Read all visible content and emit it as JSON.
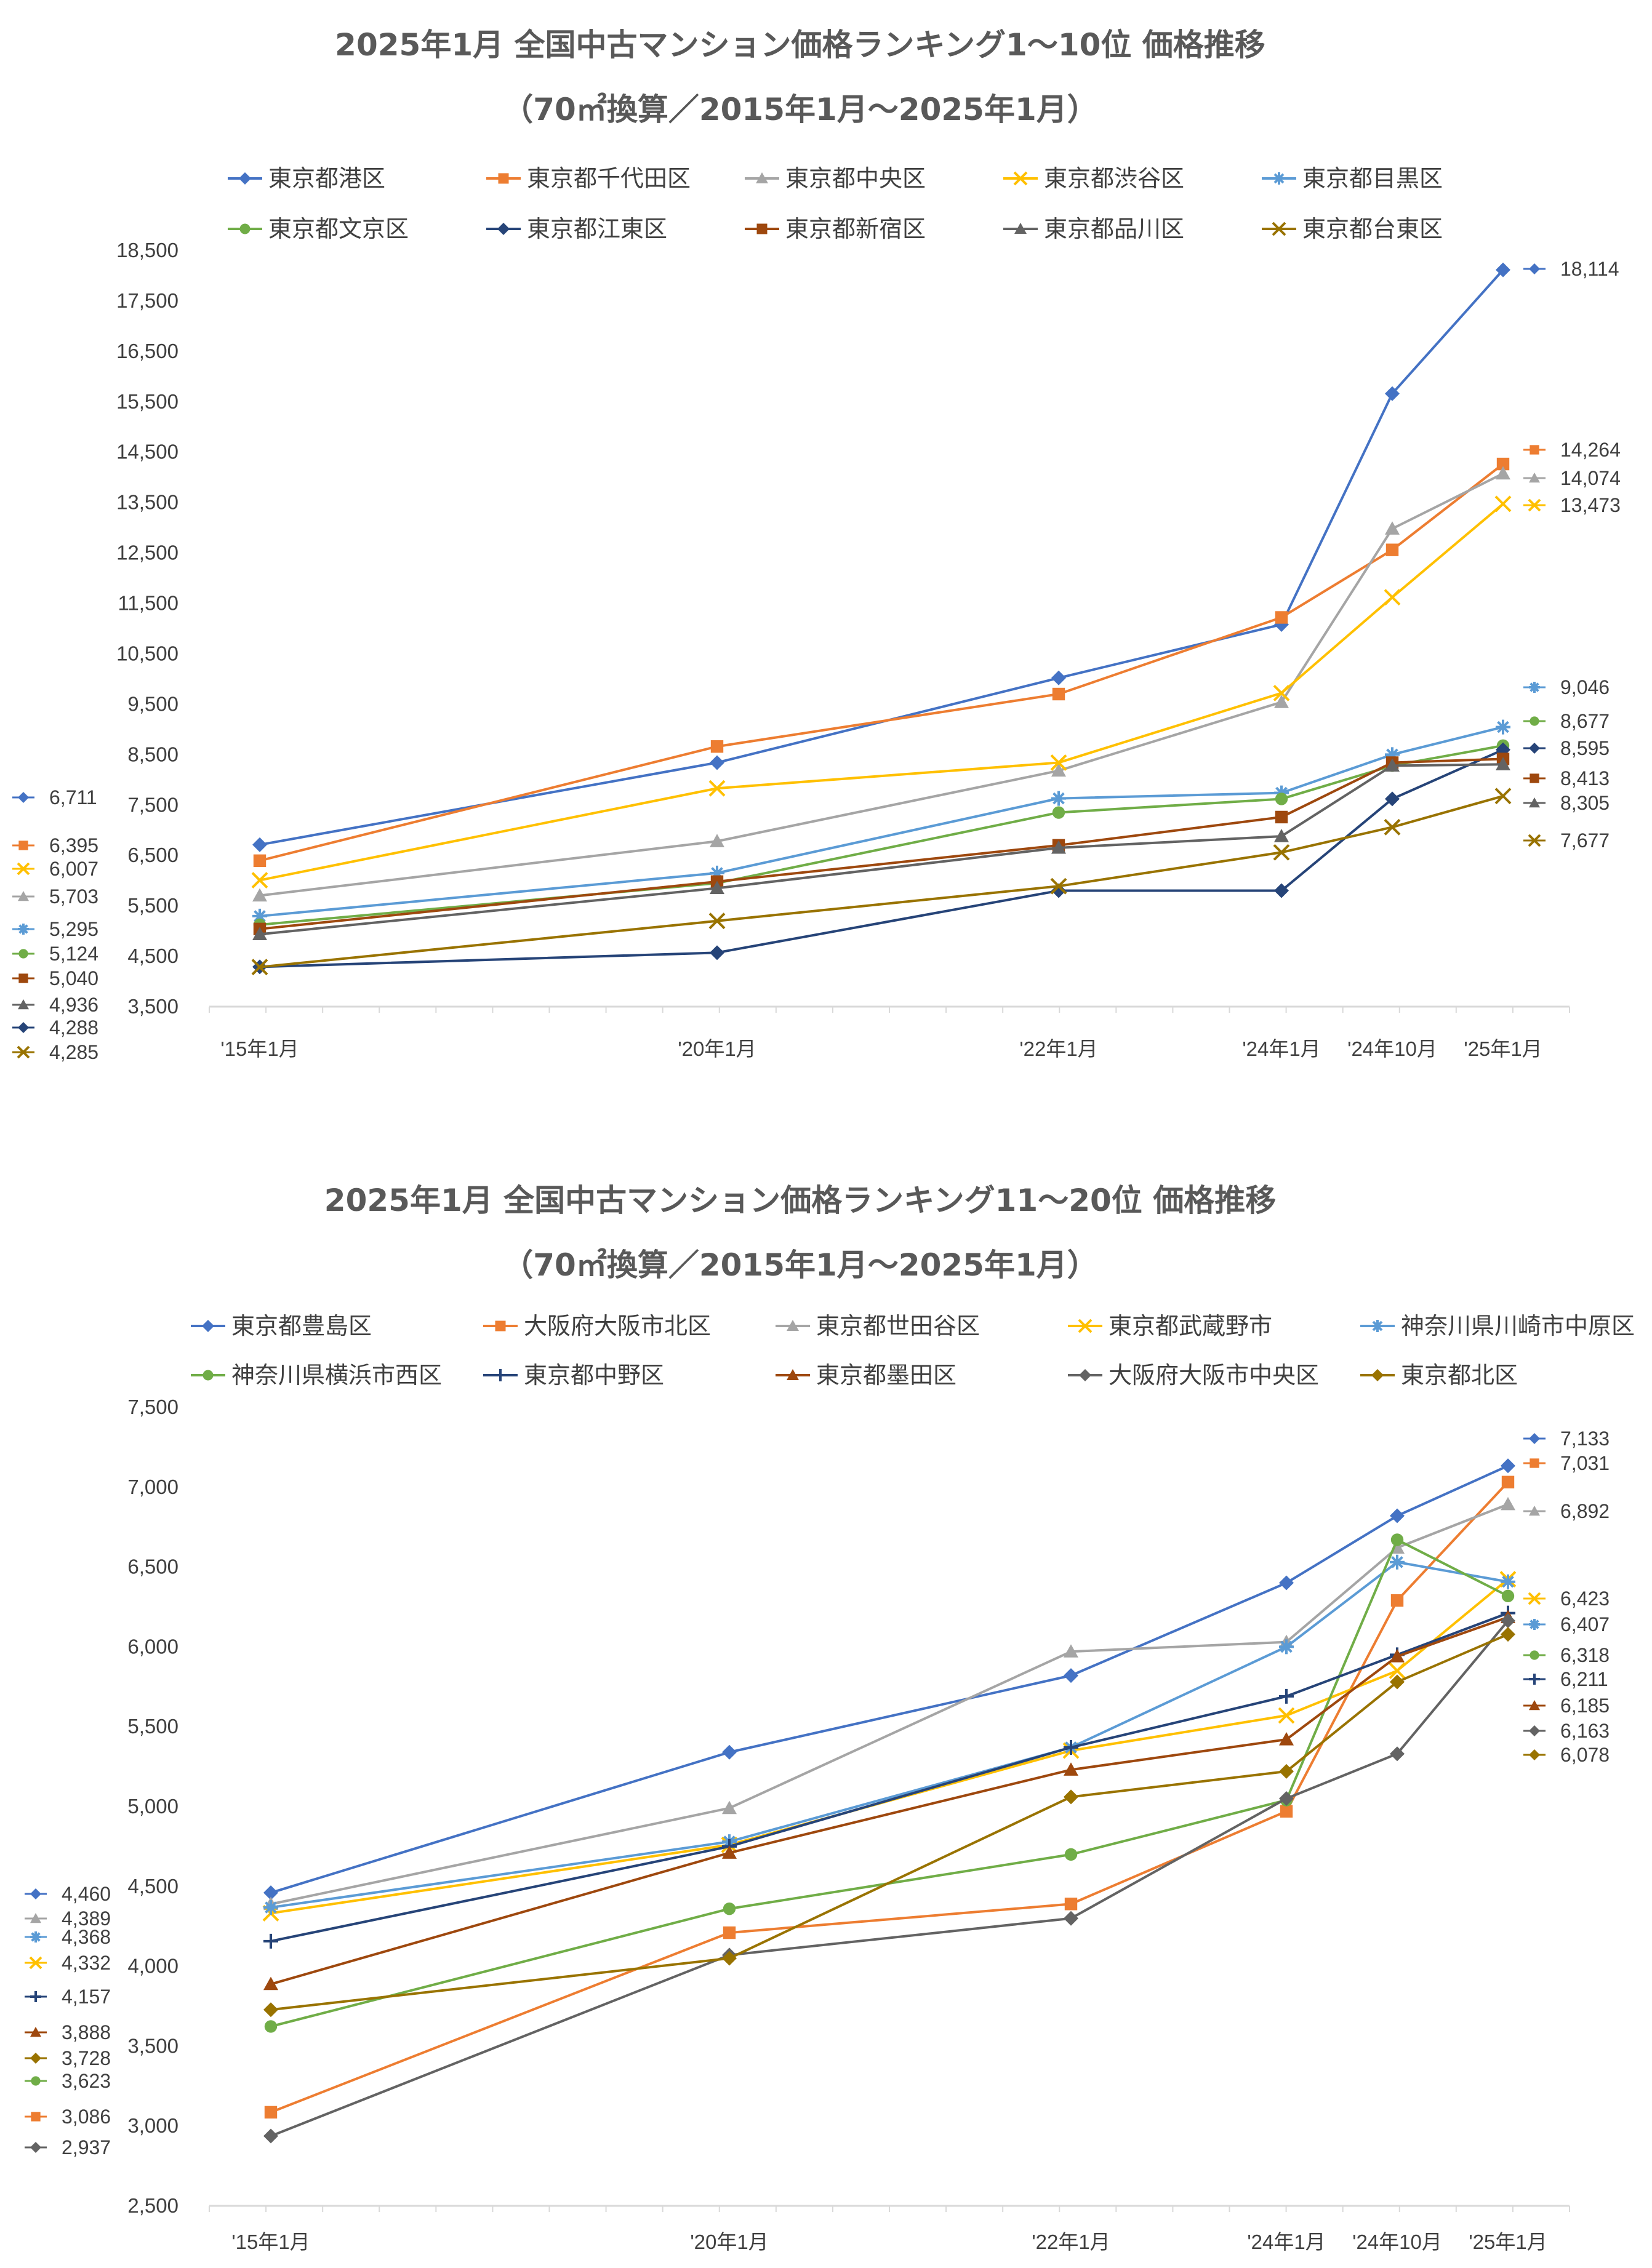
{
  "chart_data": [
    {
      "type": "line",
      "title": "2025年1月 全国中古マンション価格ランキング1～10位 価格推移",
      "subtitle": "（70㎡換算／2015年1月～2025年1月）",
      "categories": [
        "'15年1月",
        "'20年1月",
        "'22年1月",
        "'24年1月",
        "'24年10月",
        "'25年1月"
      ],
      "ylim": [
        3500,
        18500
      ],
      "yticks": [
        "3,500",
        "4,500",
        "5,500",
        "6,500",
        "7,500",
        "8,500",
        "9,500",
        "10,500",
        "11,500",
        "12,500",
        "13,500",
        "14,500",
        "15,500",
        "16,500",
        "17,500",
        "18,500"
      ],
      "series": [
        {
          "name": "東京都港区",
          "color": "#4472C4",
          "marker": "diamond",
          "values": [
            6711,
            8340,
            10020,
            11080,
            15660,
            18114
          ],
          "start_label": "6,711",
          "end_label": "18,114"
        },
        {
          "name": "東京都千代田区",
          "color": "#ED7D31",
          "marker": "square",
          "values": [
            6395,
            8660,
            9700,
            11220,
            12560,
            14264
          ],
          "start_label": "6,395",
          "end_label": "14,264"
        },
        {
          "name": "東京都中央区",
          "color": "#A5A5A5",
          "marker": "triangle",
          "values": [
            5703,
            6780,
            8180,
            9540,
            12980,
            14074
          ],
          "start_label": "5,703",
          "end_label": "14,074"
        },
        {
          "name": "東京都渋谷区",
          "color": "#FFC000",
          "marker": "x",
          "values": [
            6007,
            7830,
            8340,
            9720,
            11620,
            13473
          ],
          "start_label": "6,007",
          "end_label": "13,473"
        },
        {
          "name": "東京都目黒区",
          "color": "#5B9BD5",
          "marker": "star",
          "values": [
            5295,
            6150,
            7630,
            7740,
            8500,
            9046
          ],
          "start_label": "5,295",
          "end_label": "9,046"
        },
        {
          "name": "東京都文京区",
          "color": "#70AD47",
          "marker": "circle",
          "values": [
            5124,
            5950,
            7350,
            7620,
            8280,
            8677
          ],
          "start_label": "5,124",
          "end_label": "8,677"
        },
        {
          "name": "東京都江東区",
          "color": "#264478",
          "marker": "diamond",
          "values": [
            4288,
            4570,
            5800,
            5800,
            7620,
            8595
          ],
          "start_label": "4,288",
          "end_label": "8,595"
        },
        {
          "name": "東京都新宿区",
          "color": "#9E480E",
          "marker": "square",
          "values": [
            5040,
            5980,
            6700,
            7260,
            8340,
            8413
          ],
          "start_label": "5,040",
          "end_label": "8,413"
        },
        {
          "name": "東京都品川区",
          "color": "#636363",
          "marker": "triangle",
          "values": [
            4936,
            5850,
            6650,
            6880,
            8280,
            8305
          ],
          "start_label": "4,936",
          "end_label": "8,305"
        },
        {
          "name": "東京都台東区",
          "color": "#997300",
          "marker": "x",
          "values": [
            4285,
            5200,
            5890,
            6560,
            7060,
            7677
          ],
          "start_label": "4,285",
          "end_label": "7,677"
        }
      ]
    },
    {
      "type": "line",
      "title": "2025年1月 全国中古マンション価格ランキング11～20位 価格推移",
      "subtitle": "（70㎡換算／2015年1月～2025年1月）",
      "categories": [
        "'15年1月",
        "'20年1月",
        "'22年1月",
        "'24年1月",
        "'24年10月",
        "'25年1月"
      ],
      "ylim": [
        2500,
        7500
      ],
      "yticks": [
        "2,500",
        "3,000",
        "3,500",
        "4,000",
        "4,500",
        "5,000",
        "5,500",
        "6,000",
        "6,500",
        "7,000",
        "7,500"
      ],
      "series": [
        {
          "name": "東京都豊島区",
          "color": "#4472C4",
          "marker": "diamond",
          "values": [
            4460,
            5340,
            5820,
            6400,
            6820,
            7133
          ],
          "start_label": "4,460",
          "end_label": "7,133"
        },
        {
          "name": "大阪府大阪市北区",
          "color": "#ED7D31",
          "marker": "square",
          "values": [
            3086,
            4210,
            4390,
            4970,
            6290,
            7031
          ],
          "start_label": "3,086",
          "end_label": "7,031"
        },
        {
          "name": "東京都世田谷区",
          "color": "#A5A5A5",
          "marker": "triangle",
          "values": [
            4389,
            4990,
            5970,
            6030,
            6620,
            6892
          ],
          "start_label": "4,389",
          "end_label": "6,892"
        },
        {
          "name": "東京都武蔵野市",
          "color": "#FFC000",
          "marker": "x",
          "values": [
            4332,
            4760,
            5350,
            5570,
            5850,
            6423
          ],
          "start_label": "4,332",
          "end_label": "6,423"
        },
        {
          "name": "神奈川県川崎市中原区",
          "color": "#5B9BD5",
          "marker": "star",
          "values": [
            4368,
            4780,
            5370,
            6000,
            6530,
            6407
          ],
          "start_label": "4,368",
          "end_label": "6,407"
        },
        {
          "name": "神奈川県横浜市西区",
          "color": "#70AD47",
          "marker": "circle",
          "values": [
            3623,
            4360,
            4700,
            5040,
            6670,
            6318
          ],
          "start_label": "3,623",
          "end_label": "6,318"
        },
        {
          "name": "東京都中野区",
          "color": "#264478",
          "marker": "plus",
          "values": [
            4157,
            4750,
            5370,
            5690,
            5950,
            6211
          ],
          "start_label": "4,157",
          "end_label": "6,211"
        },
        {
          "name": "東京都墨田区",
          "color": "#9E480E",
          "marker": "triangle",
          "values": [
            3888,
            4710,
            5230,
            5420,
            5940,
            6185
          ],
          "start_label": "3,888",
          "end_label": "6,185"
        },
        {
          "name": "大阪府大阪市中央区",
          "color": "#636363",
          "marker": "diamond",
          "values": [
            2937,
            4070,
            4300,
            5050,
            5330,
            6163
          ],
          "start_label": "2,937",
          "end_label": "6,163"
        },
        {
          "name": "東京都北区",
          "color": "#997300",
          "marker": "diamond",
          "values": [
            3728,
            4050,
            5060,
            5220,
            5780,
            6078
          ],
          "start_label": "3,728",
          "end_label": "6,078"
        }
      ]
    }
  ]
}
